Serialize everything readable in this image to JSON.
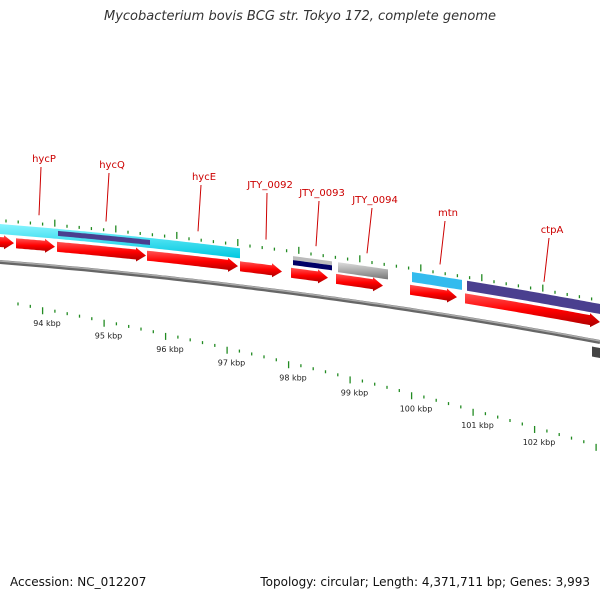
{
  "title": "Mycobacterium bovis BCG str. Tokyo 172, complete genome",
  "footer": {
    "accession": "Accession: NC_012207",
    "summary": "Topology: circular; Length: 4,371,711 bp; Genes: 3,993"
  },
  "colors": {
    "cds": "#ff0000",
    "cyan_feature": "#00e5ff",
    "light_blue_feature": "#33bbee",
    "purple_feature": "#4a3f8f",
    "gray_feature": "#666666",
    "light_gray_feature": "#bbbbbb",
    "navy_feature": "#000066",
    "tick": "#228b22",
    "label": "#cc0000",
    "backbone": "#888888"
  },
  "gene_labels": [
    "hycP",
    "hycQ",
    "hycE",
    "JTY_0092",
    "JTY_0093",
    "JTY_0094",
    "mtn",
    "ctpA"
  ],
  "kbp_labels": [
    "94 kbp",
    "95 kbp",
    "96 kbp",
    "97 kbp",
    "98 kbp",
    "99 kbp",
    "100 kbp",
    "101 kbp",
    "102 kbp"
  ]
}
